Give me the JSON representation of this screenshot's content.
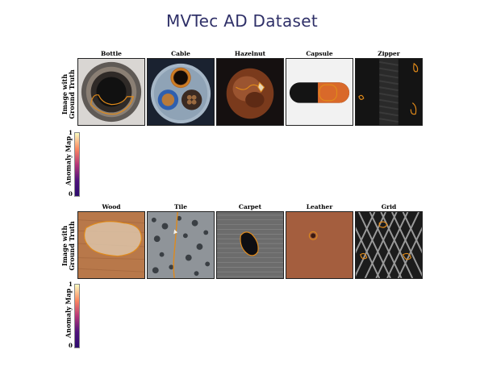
{
  "title": "MVTec AD  Dataset",
  "sections": [
    {
      "row_label_lines": [
        "Image with",
        "Ground Truth"
      ],
      "categories": [
        "Bottle",
        "Cable",
        "Hazelnut",
        "Capsule",
        "Zipper"
      ],
      "colorbar_label": "Anomaly Map",
      "colorbar_max": "1",
      "colorbar_min": "0"
    },
    {
      "row_label_lines": [
        "Image with",
        "Ground Truth"
      ],
      "categories": [
        "Wood",
        "Tile",
        "Carpet",
        "Leather",
        "Grid"
      ],
      "colorbar_label": "Anomaly Map",
      "colorbar_max": "1",
      "colorbar_min": "0"
    }
  ],
  "colors": {
    "title": "#2f3068",
    "ground_truth_outline": "#e08a1a"
  }
}
